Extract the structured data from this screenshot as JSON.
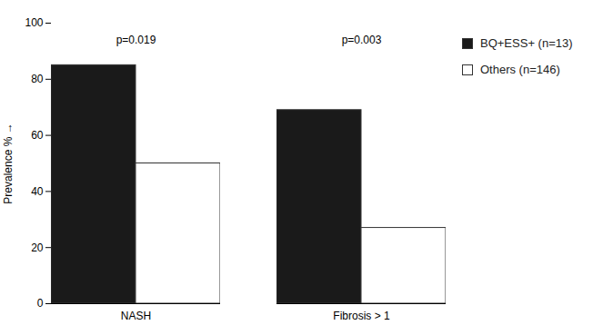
{
  "chart_data": {
    "type": "bar",
    "categories": [
      "NASH",
      "Fibrosis > 1"
    ],
    "series": [
      {
        "name": "BQ+ESS+ (n=13)",
        "color": "#1a1a1a",
        "values": [
          85,
          69
        ]
      },
      {
        "name": "Others (n=146)",
        "color": "#ffffff",
        "values": [
          50,
          27
        ]
      }
    ],
    "annotations": [
      {
        "text": "p=0.019",
        "category": "NASH",
        "y": 92
      },
      {
        "text": "p=0.003",
        "category": "Fibrosis > 1",
        "y": 92
      }
    ],
    "ylabel": "Prevalence %",
    "ylim": [
      0,
      100
    ],
    "yticks": [
      0,
      20,
      40,
      60,
      80,
      100
    ],
    "grid": false,
    "legend": "right"
  }
}
